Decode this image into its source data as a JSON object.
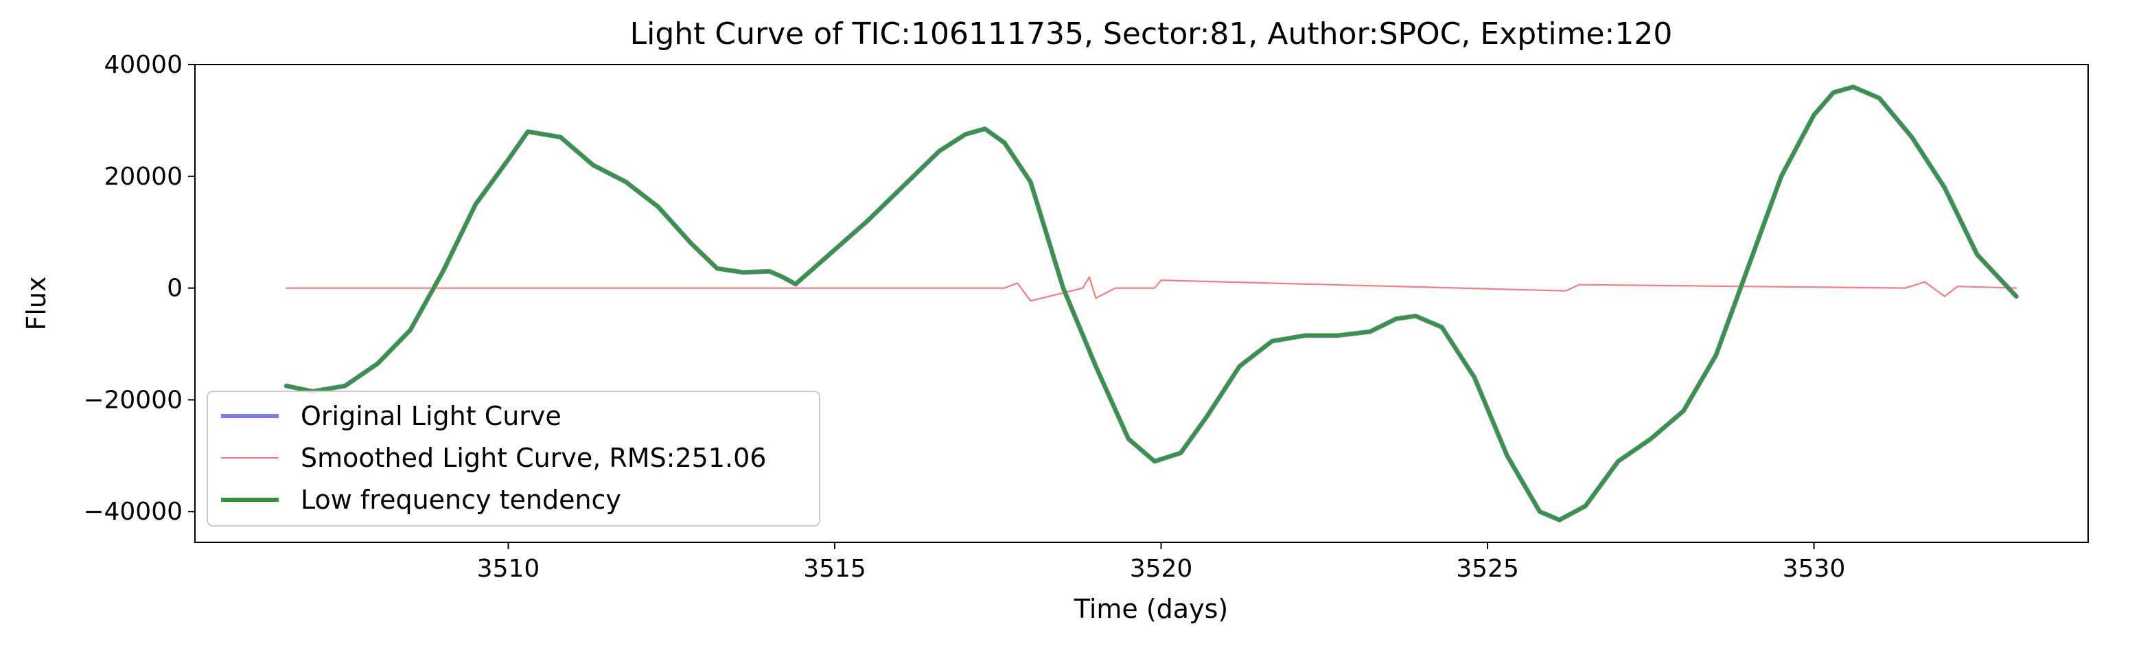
{
  "chart_data": {
    "type": "line",
    "title": "Light Curve of TIC:106111735, Sector:81, Author:SPOC, Exptime:120",
    "xlabel": "Time (days)",
    "ylabel": "Flux",
    "xlim": [
      3505.2,
      3534.2
    ],
    "ylim": [
      -45500,
      40000
    ],
    "xticks": [
      3510,
      3515,
      3520,
      3525,
      3530
    ],
    "yticks": [
      -40000,
      -20000,
      0,
      20000,
      40000
    ],
    "ytick_labels": [
      "−40000",
      "−20000",
      "0",
      "20000",
      "40000"
    ],
    "grid": false,
    "legend_position": "lower-left",
    "series": [
      {
        "name": "Original Light Curve",
        "color": "#7b7bf5",
        "x": [
          3506.6,
          3507.0,
          3507.5,
          3508.0,
          3508.5,
          3509.0,
          3509.5,
          3510.0,
          3510.3,
          3510.8,
          3511.3,
          3511.8,
          3512.3,
          3512.8,
          3513.2,
          3513.6,
          3514.0,
          3514.2,
          3514.4,
          3515.5,
          3516.6,
          3517.0,
          3517.3,
          3517.6,
          3518.0,
          3518.5,
          3519.0,
          3519.5,
          3519.9,
          3520.3,
          3520.7,
          3521.2,
          3521.7,
          3522.2,
          3522.7,
          3523.2,
          3523.6,
          3523.9,
          3524.3,
          3524.8,
          3525.3,
          3525.8,
          3526.1,
          3526.5,
          3527.0,
          3527.5,
          3528.0,
          3528.5,
          3529.0,
          3529.5,
          3530.0,
          3530.3,
          3530.6,
          3531.0,
          3531.5,
          3532.0,
          3532.5,
          3533.1
        ],
        "y": [
          -17500,
          -18500,
          -17500,
          -13500,
          -7500,
          3000,
          15000,
          23000,
          28000,
          27000,
          22000,
          19000,
          14500,
          8000,
          3500,
          2800,
          3000,
          2000,
          700,
          12000,
          24500,
          27500,
          28500,
          26000,
          19000,
          0,
          -14000,
          -27000,
          -31000,
          -29500,
          -23000,
          -14000,
          -9500,
          -8500,
          -8500,
          -7800,
          -5500,
          -5000,
          -7000,
          -16000,
          -30000,
          -40000,
          -41500,
          -39000,
          -31000,
          -27000,
          -22000,
          -12000,
          4000,
          20000,
          31000,
          35000,
          36000,
          34000,
          27000,
          18000,
          6000,
          -1500
        ]
      },
      {
        "name": "Smoothed Light Curve, RMS:251.06",
        "color": "#f77777",
        "x": [
          3506.6,
          3513.7,
          3514.4,
          3516.9,
          3517.6,
          3517.8,
          3518.0,
          3518.8,
          3518.9,
          3519.0,
          3519.3,
          3519.9,
          3520.0,
          3526.2,
          3526.4,
          3531.4,
          3531.7,
          3532.0,
          3532.2,
          3533.1
        ],
        "y": [
          0,
          0,
          0,
          0,
          0,
          900,
          -2300,
          0,
          2000,
          -1800,
          0,
          0,
          1400,
          -500,
          600,
          0,
          1100,
          -1500,
          300,
          0
        ]
      },
      {
        "name": "Low frequency tendency",
        "color": "#359535",
        "x": [
          3506.6,
          3507.0,
          3507.5,
          3508.0,
          3508.5,
          3509.0,
          3509.5,
          3510.0,
          3510.3,
          3510.8,
          3511.3,
          3511.8,
          3512.3,
          3512.8,
          3513.2,
          3513.6,
          3514.0,
          3514.2,
          3514.4,
          3515.5,
          3516.6,
          3517.0,
          3517.3,
          3517.6,
          3518.0,
          3518.5,
          3519.0,
          3519.5,
          3519.9,
          3520.3,
          3520.7,
          3521.2,
          3521.7,
          3522.2,
          3522.7,
          3523.2,
          3523.6,
          3523.9,
          3524.3,
          3524.8,
          3525.3,
          3525.8,
          3526.1,
          3526.5,
          3527.0,
          3527.5,
          3528.0,
          3528.5,
          3529.0,
          3529.5,
          3530.0,
          3530.3,
          3530.6,
          3531.0,
          3531.5,
          3532.0,
          3532.5,
          3533.1
        ],
        "y": [
          -17500,
          -18500,
          -17500,
          -13500,
          -7500,
          3000,
          15000,
          23000,
          28000,
          27000,
          22000,
          19000,
          14500,
          8000,
          3500,
          2800,
          3000,
          2000,
          700,
          12000,
          24500,
          27500,
          28500,
          26000,
          19000,
          0,
          -14000,
          -27000,
          -31000,
          -29500,
          -23000,
          -14000,
          -9500,
          -8500,
          -8500,
          -7800,
          -5500,
          -5000,
          -7000,
          -16000,
          -30000,
          -40000,
          -41500,
          -39000,
          -31000,
          -27000,
          -22000,
          -12000,
          4000,
          20000,
          31000,
          35000,
          36000,
          34000,
          27000,
          18000,
          6000,
          -1500
        ]
      }
    ]
  }
}
